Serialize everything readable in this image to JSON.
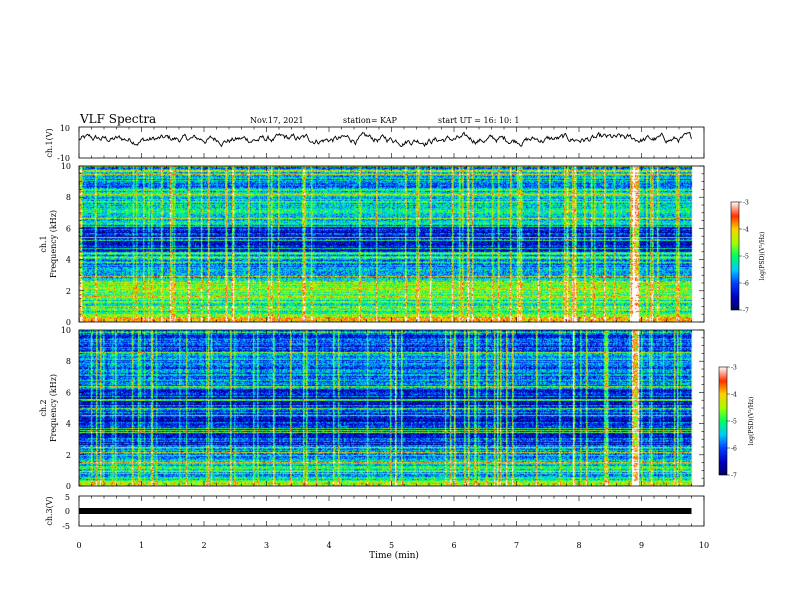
{
  "header": {
    "title": "VLF Spectra",
    "date": "Nov.17, 2021",
    "station": "station= KAP",
    "start": "start  UT =   16: 10: 1"
  },
  "chart_data": [
    {
      "type": "line",
      "ylabel": "ch.1(V)",
      "ylim": [
        -10,
        10
      ],
      "ytick_labels": [
        "10",
        "-10"
      ],
      "xlim": [
        0,
        10
      ],
      "notes": "continuous noisy waveform oscillating around +2 V within about -3..+6"
    },
    {
      "type": "heatmap",
      "ylabel": "Frequency (kHz)",
      "channel_label": "ch.1",
      "ylim": [
        0,
        10
      ],
      "yticks": [
        0,
        2,
        4,
        6,
        8,
        10
      ],
      "xlim": [
        0,
        10
      ],
      "data_end_min": 9.8,
      "bands_khz": [
        {
          "from": 0.0,
          "to": 0.3,
          "level": -4.0
        },
        {
          "from": 0.3,
          "to": 1.8,
          "level": -5.0
        },
        {
          "from": 1.8,
          "to": 2.6,
          "level": -4.6
        },
        {
          "from": 2.6,
          "to": 4.4,
          "level": -5.6
        },
        {
          "from": 4.4,
          "to": 5.2,
          "level": -6.4
        },
        {
          "from": 5.2,
          "to": 6.2,
          "level": -6.3
        },
        {
          "from": 6.2,
          "to": 8.6,
          "level": -5.3
        },
        {
          "from": 8.6,
          "to": 10.0,
          "level": -5.7
        }
      ],
      "burst_min": 8.9,
      "colorbar": {
        "label": "log(PSD)(V²/Hz)",
        "range": [
          -7,
          -3
        ],
        "tick_labels": [
          "-3",
          "-4",
          "-5",
          "-6",
          "-7"
        ]
      }
    },
    {
      "type": "heatmap",
      "ylabel": "Frequency (kHz)",
      "channel_label": "ch.2",
      "ylim": [
        0,
        10
      ],
      "yticks": [
        0,
        2,
        4,
        6,
        8,
        10
      ],
      "xlim": [
        0,
        10
      ],
      "data_end_min": 9.8,
      "bands_khz": [
        {
          "from": 0.0,
          "to": 0.3,
          "level": -4.2
        },
        {
          "from": 0.3,
          "to": 1.8,
          "level": -5.3
        },
        {
          "from": 1.8,
          "to": 2.6,
          "level": -5.6
        },
        {
          "from": 2.6,
          "to": 4.4,
          "level": -6.3
        },
        {
          "from": 4.4,
          "to": 5.2,
          "level": -6.0
        },
        {
          "from": 5.2,
          "to": 6.2,
          "level": -6.5
        },
        {
          "from": 6.2,
          "to": 8.6,
          "level": -5.8
        },
        {
          "from": 8.6,
          "to": 10.0,
          "level": -6.1
        }
      ],
      "burst_min": 8.9,
      "colorbar": {
        "label": "log(PSD)(V²/Hz)",
        "range": [
          -7,
          -3
        ],
        "tick_labels": [
          "-3",
          "-4",
          "-5",
          "-6",
          "-7"
        ]
      }
    },
    {
      "type": "line",
      "ylabel": "ch.3(V)",
      "ylim": [
        -5,
        5
      ],
      "ytick_labels": [
        "5",
        "0",
        "-5"
      ],
      "xlim": [
        0,
        10
      ],
      "level_v": 0,
      "notes": "flat trace at 0 V drawn as thick black band"
    }
  ],
  "xaxis": {
    "label": "Time  (min)",
    "ticks": [
      0,
      1,
      2,
      3,
      4,
      5,
      6,
      7,
      8,
      9,
      10
    ],
    "tick_labels": [
      "0",
      "1",
      "2",
      "3",
      "4",
      "5",
      "6",
      "7",
      "8",
      "9",
      "10"
    ]
  }
}
